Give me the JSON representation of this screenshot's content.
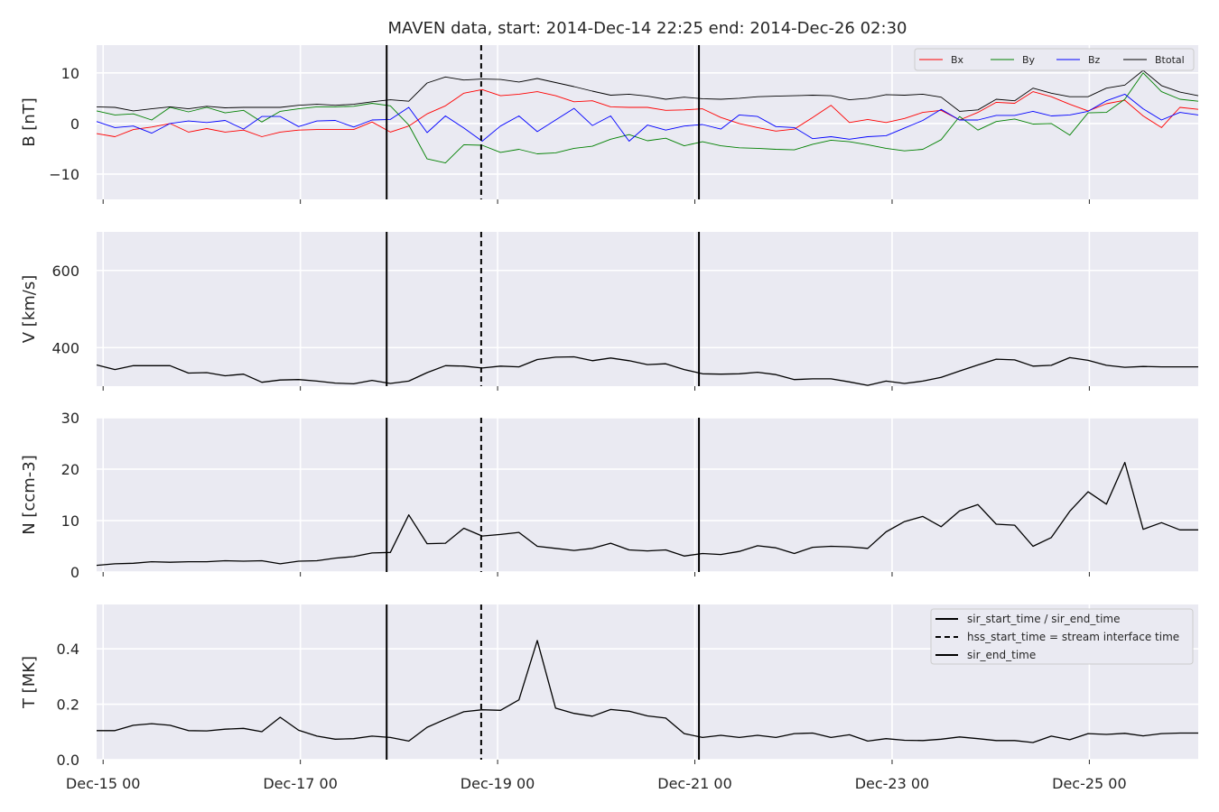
{
  "chart_data": {
    "type": "line",
    "title": "MAVEN data, start: 2014-Dec-14 22:25  end: 2014-Dec-26 02:30",
    "x_unit": "days",
    "x_range": [
      "2014-12-14T22:25",
      "2014-12-26T02:30"
    ],
    "x_tick_labels": [
      "Dec-15 00",
      "Dec-17 00",
      "Dec-19 00",
      "Dec-21 00",
      "Dec-23 00",
      "Dec-25 00"
    ],
    "grid": true,
    "event_lines": [
      {
        "name": "sir_start_time / sir_end_time",
        "time": "2014-12-17T21:00",
        "style": "solid"
      },
      {
        "name": "hss_start_time = stream interface time",
        "time": "2014-12-18T20:00",
        "style": "dashed"
      },
      {
        "name": "sir_end_time",
        "time": "2014-12-21T01:00",
        "style": "solid"
      }
    ],
    "event_legend_entries": [
      "sir_start_time / sir_end_time",
      "hss_start_time = stream interface time",
      "sir_end_time"
    ],
    "event_legend_placement": "top-right of T panel",
    "panels": [
      {
        "ylabel": "B [nT]",
        "ylim": [
          -15,
          15.5
        ],
        "yticks": [
          -10,
          0,
          10
        ],
        "legend_placement": "top-right",
        "series": [
          {
            "name": "Bx",
            "color": "#ff0000",
            "values": [
              -2.0,
              -2.6,
              -1.2,
              -0.7,
              0.0,
              -1.7,
              -1.0,
              -1.7,
              -1.3,
              -2.6,
              -1.7,
              -1.3,
              -1.2,
              -1.2,
              -1.2,
              0.3,
              -1.7,
              -0.5,
              1.9,
              3.5,
              6.0,
              6.7,
              5.5,
              5.8,
              6.3,
              5.5,
              4.3,
              4.5,
              3.3,
              3.2,
              3.2,
              2.6,
              2.7,
              2.9,
              1.2,
              0.0,
              -0.8,
              -1.5,
              -1.1,
              1.2,
              3.6,
              0.2,
              0.8,
              0.2,
              1.0,
              2.2,
              2.6,
              0.7,
              2.2,
              4.2,
              4.0,
              6.3,
              5.3,
              3.8,
              2.5,
              3.9,
              4.6,
              1.5,
              -0.8,
              3.2,
              2.8
            ]
          },
          {
            "name": "By",
            "color": "#008000",
            "values": [
              2.5,
              1.7,
              1.9,
              0.7,
              3.2,
              2.3,
              3.2,
              2.1,
              2.6,
              0.3,
              2.4,
              2.9,
              3.3,
              3.3,
              3.4,
              4.0,
              3.5,
              -0.3,
              -7.0,
              -7.8,
              -4.2,
              -4.3,
              -5.7,
              -5.1,
              -6.0,
              -5.8,
              -4.9,
              -4.5,
              -3.1,
              -2.2,
              -3.4,
              -2.9,
              -4.4,
              -3.6,
              -4.4,
              -4.8,
              -4.9,
              -5.1,
              -5.2,
              -4.1,
              -3.3,
              -3.6,
              -4.2,
              -4.9,
              -5.4,
              -5.1,
              -3.2,
              1.4,
              -1.3,
              0.4,
              0.9,
              -0.1,
              0.0,
              -2.3,
              2.1,
              2.2,
              4.8,
              10.0,
              6.3,
              4.8,
              4.4
            ]
          },
          {
            "name": "Bz",
            "color": "#0000ff",
            "values": [
              0.4,
              -0.8,
              -0.5,
              -1.9,
              0.0,
              0.5,
              0.2,
              0.6,
              -1.1,
              1.4,
              1.4,
              -0.6,
              0.5,
              0.6,
              -0.7,
              0.7,
              0.8,
              3.2,
              -1.8,
              1.5,
              -0.9,
              -3.5,
              -0.5,
              1.5,
              -1.6,
              0.7,
              3.0,
              -0.4,
              1.5,
              -3.5,
              -0.3,
              -1.3,
              -0.5,
              -0.2,
              -1.1,
              1.7,
              1.4,
              -0.6,
              -0.8,
              -3.0,
              -2.6,
              -3.1,
              -2.6,
              -2.4,
              -0.9,
              0.6,
              2.8,
              0.7,
              0.7,
              1.6,
              1.6,
              2.4,
              1.5,
              1.7,
              2.4,
              4.5,
              5.8,
              2.9,
              0.7,
              2.2,
              1.7
            ]
          },
          {
            "name": "Btotal",
            "color": "#000000",
            "values": [
              3.3,
              3.2,
              2.5,
              2.9,
              3.3,
              2.9,
              3.4,
              3.1,
              3.2,
              3.2,
              3.2,
              3.6,
              3.8,
              3.6,
              3.8,
              4.3,
              4.7,
              4.4,
              8.0,
              9.2,
              8.6,
              8.8,
              8.7,
              8.2,
              8.9,
              8.1,
              7.3,
              6.4,
              5.6,
              5.8,
              5.4,
              4.8,
              5.2,
              4.9,
              4.8,
              5.0,
              5.3,
              5.4,
              5.5,
              5.6,
              5.5,
              4.7,
              5.0,
              5.7,
              5.6,
              5.8,
              5.2,
              2.4,
              2.7,
              4.8,
              4.5,
              7.0,
              6.0,
              5.3,
              5.3,
              7.0,
              7.6,
              10.5,
              7.5,
              6.2,
              5.5
            ]
          }
        ]
      },
      {
        "ylabel": "V [km/s]",
        "ylim": [
          300,
          700
        ],
        "yticks": [
          400,
          600
        ],
        "series": [
          {
            "name": "V",
            "color": "#000000",
            "values": [
              355,
              343,
              353,
              353,
              353,
              334,
              335,
              327,
              331,
              310,
              316,
              317,
              313,
              308,
              306,
              315,
              307,
              313,
              335,
              353,
              352,
              347,
              352,
              350,
              369,
              375,
              376,
              366,
              373,
              366,
              356,
              358,
              343,
              332,
              331,
              332,
              336,
              330,
              317,
              319,
              319,
              311,
              302,
              313,
              307,
              313,
              323,
              339,
              355,
              370,
              368,
              352,
              354,
              374,
              367,
              354,
              349,
              351,
              350,
              350,
              350
            ]
          }
        ]
      },
      {
        "ylabel": "N [ccm-3]",
        "ylim": [
          0,
          30
        ],
        "yticks": [
          0,
          10,
          20,
          30
        ],
        "series": [
          {
            "name": "N",
            "color": "#000000",
            "values": [
              1.3,
              1.6,
              1.7,
              2.0,
              1.9,
              2.0,
              2.0,
              2.2,
              2.1,
              2.2,
              1.6,
              2.1,
              2.2,
              2.7,
              3.0,
              3.7,
              3.8,
              11.1,
              5.5,
              5.6,
              8.5,
              7.0,
              7.3,
              7.7,
              5.0,
              4.6,
              4.2,
              4.6,
              5.6,
              4.3,
              4.1,
              4.3,
              3.1,
              3.6,
              3.4,
              4.0,
              5.1,
              4.7,
              3.6,
              4.8,
              5.0,
              4.9,
              4.6,
              7.8,
              9.8,
              10.8,
              8.8,
              11.9,
              13.1,
              9.3,
              9.1,
              5.0,
              6.7,
              11.8,
              15.6,
              13.2,
              21.3,
              8.3,
              9.6,
              8.2,
              8.2
            ]
          }
        ]
      },
      {
        "ylabel": "T [MK]",
        "ylim": [
          0.0,
          0.56
        ],
        "yticks": [
          0.0,
          0.2,
          0.4
        ],
        "series": [
          {
            "name": "T",
            "color": "#000000",
            "values": [
              0.105,
              0.105,
              0.124,
              0.13,
              0.124,
              0.105,
              0.104,
              0.11,
              0.113,
              0.101,
              0.153,
              0.106,
              0.085,
              0.074,
              0.076,
              0.085,
              0.08,
              0.067,
              0.117,
              0.146,
              0.173,
              0.18,
              0.178,
              0.216,
              0.43,
              0.186,
              0.167,
              0.157,
              0.181,
              0.175,
              0.158,
              0.15,
              0.094,
              0.08,
              0.088,
              0.08,
              0.088,
              0.08,
              0.094,
              0.096,
              0.08,
              0.09,
              0.067,
              0.076,
              0.07,
              0.069,
              0.074,
              0.082,
              0.076,
              0.069,
              0.069,
              0.062,
              0.085,
              0.072,
              0.094,
              0.091,
              0.095,
              0.086,
              0.094,
              0.096,
              0.096
            ]
          }
        ]
      }
    ]
  }
}
